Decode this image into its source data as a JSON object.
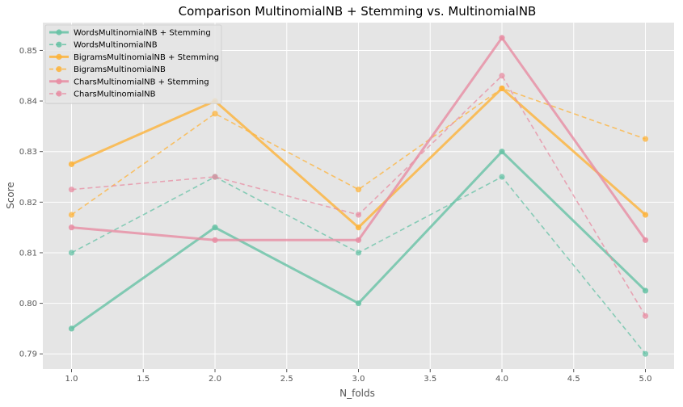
{
  "chart_data": {
    "type": "line",
    "title": "Comparison MultinomialNB + Stemming vs. MultinomialNB",
    "xlabel": "N_folds",
    "ylabel": "Score",
    "xlim": [
      0.8,
      5.2
    ],
    "ylim": [
      0.787,
      0.8555
    ],
    "xticks": [
      1.0,
      1.5,
      2.0,
      2.5,
      3.0,
      3.5,
      4.0,
      4.5,
      5.0
    ],
    "xtick_labels": [
      "1.0",
      "1.5",
      "2.0",
      "2.5",
      "3.0",
      "3.5",
      "4.0",
      "4.5",
      "5.0"
    ],
    "yticks": [
      0.79,
      0.8,
      0.81,
      0.82,
      0.83,
      0.84,
      0.85
    ],
    "ytick_labels": [
      "0.79",
      "0.80",
      "0.81",
      "0.82",
      "0.83",
      "0.84",
      "0.85"
    ],
    "grid": true,
    "legend_position": "top-left",
    "x": [
      1,
      2,
      3,
      4,
      5
    ],
    "series": [
      {
        "name": "WordsMultinomialNB + Stemming",
        "values": [
          0.795,
          0.815,
          0.8,
          0.83,
          0.8025
        ],
        "color": "#66c2a5",
        "style": "solid"
      },
      {
        "name": "WordsMultinomialNB",
        "values": [
          0.81,
          0.825,
          0.81,
          0.825,
          0.79
        ],
        "color": "#66c2a5",
        "style": "dashed"
      },
      {
        "name": "BigramsMultinomialNB + Stemming",
        "values": [
          0.8275,
          0.84,
          0.815,
          0.8425,
          0.8175
        ],
        "color": "#fdb33a",
        "style": "solid"
      },
      {
        "name": "BigramsMultinomialNB",
        "values": [
          0.8175,
          0.8375,
          0.8225,
          0.8425,
          0.8325
        ],
        "color": "#fdb33a",
        "style": "dashed"
      },
      {
        "name": "CharsMultinomialNB + Stemming",
        "values": [
          0.815,
          0.8125,
          0.8125,
          0.8525,
          0.8125
        ],
        "color": "#e78ca2",
        "style": "solid"
      },
      {
        "name": "CharsMultinomialNB",
        "values": [
          0.8225,
          0.825,
          0.8175,
          0.845,
          0.7975
        ],
        "color": "#e78ca2",
        "style": "dashed"
      }
    ]
  }
}
